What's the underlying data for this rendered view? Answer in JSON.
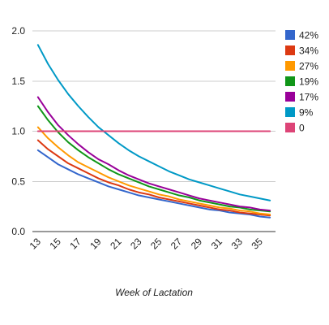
{
  "chart_data": {
    "type": "line",
    "title": "",
    "xlabel": "Week of Lactation",
    "ylabel": "",
    "x": [
      13,
      14,
      15,
      16,
      17,
      18,
      19,
      20,
      21,
      22,
      23,
      24,
      25,
      26,
      27,
      28,
      29,
      30,
      31,
      32,
      33,
      34,
      35,
      36
    ],
    "x_tick_labels": [
      "13",
      "15",
      "17",
      "19",
      "21",
      "23",
      "25",
      "27",
      "29",
      "31",
      "33",
      "35"
    ],
    "ylim": [
      0,
      2.0
    ],
    "y_tick_labels": [
      "0.0",
      "0.5",
      "1.0",
      "1.5",
      "2.0"
    ],
    "grid": "horizontal",
    "legend_position": "right",
    "series": [
      {
        "name": "42%",
        "color": "#3366cc",
        "values": [
          0.81,
          0.74,
          0.67,
          0.62,
          0.57,
          0.53,
          0.49,
          0.45,
          0.42,
          0.39,
          0.36,
          0.34,
          0.32,
          0.3,
          0.28,
          0.26,
          0.24,
          0.22,
          0.21,
          0.19,
          0.18,
          0.17,
          0.15,
          0.14
        ]
      },
      {
        "name": "34%",
        "color": "#dc3912",
        "values": [
          0.91,
          0.82,
          0.75,
          0.68,
          0.63,
          0.58,
          0.53,
          0.49,
          0.46,
          0.42,
          0.39,
          0.37,
          0.34,
          0.32,
          0.3,
          0.28,
          0.26,
          0.24,
          0.22,
          0.21,
          0.19,
          0.18,
          0.17,
          0.16
        ]
      },
      {
        "name": "27%",
        "color": "#ff9900",
        "values": [
          1.04,
          0.93,
          0.84,
          0.76,
          0.69,
          0.64,
          0.59,
          0.54,
          0.5,
          0.46,
          0.43,
          0.4,
          0.37,
          0.35,
          0.32,
          0.3,
          0.28,
          0.26,
          0.24,
          0.23,
          0.21,
          0.2,
          0.18,
          0.17
        ]
      },
      {
        "name": "19%",
        "color": "#109618",
        "values": [
          1.25,
          1.11,
          0.99,
          0.89,
          0.81,
          0.74,
          0.68,
          0.62,
          0.57,
          0.53,
          0.49,
          0.45,
          0.42,
          0.39,
          0.36,
          0.34,
          0.31,
          0.29,
          0.27,
          0.25,
          0.24,
          0.22,
          0.21,
          0.2
        ]
      },
      {
        "name": "17%",
        "color": "#990099",
        "values": [
          1.34,
          1.19,
          1.06,
          0.96,
          0.87,
          0.79,
          0.72,
          0.67,
          0.61,
          0.56,
          0.52,
          0.48,
          0.45,
          0.42,
          0.39,
          0.36,
          0.33,
          0.31,
          0.29,
          0.27,
          0.25,
          0.24,
          0.22,
          0.21
        ]
      },
      {
        "name": "9%",
        "color": "#0099c6",
        "values": [
          1.86,
          1.67,
          1.51,
          1.37,
          1.25,
          1.14,
          1.04,
          0.96,
          0.88,
          0.81,
          0.75,
          0.7,
          0.65,
          0.6,
          0.56,
          0.52,
          0.49,
          0.46,
          0.43,
          0.4,
          0.37,
          0.35,
          0.33,
          0.31
        ]
      },
      {
        "name": "0",
        "color": "#dd4477",
        "values": [
          1.0,
          1.0,
          1.0,
          1.0,
          1.0,
          1.0,
          1.0,
          1.0,
          1.0,
          1.0,
          1.0,
          1.0,
          1.0,
          1.0,
          1.0,
          1.0,
          1.0,
          1.0,
          1.0,
          1.0,
          1.0,
          1.0,
          1.0,
          1.0
        ]
      }
    ]
  }
}
